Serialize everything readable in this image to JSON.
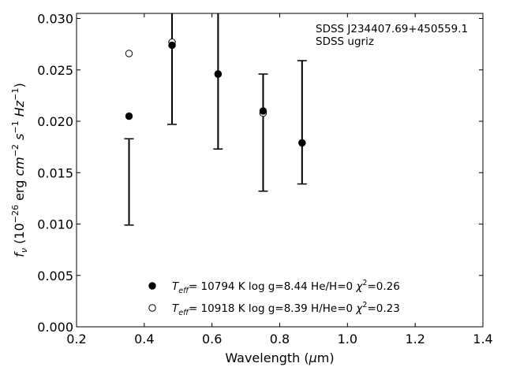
{
  "chart_data": {
    "type": "scatter",
    "annotation_lines": [
      "SDSS J234407.69+450559.1",
      "SDSS ugriz"
    ],
    "xlabel": "Wavelength (μm)",
    "ylabel": "f_ν (10^-26 erg cm^-2 s^-1 Hz^-1)",
    "xlim": [
      0.2,
      1.4
    ],
    "ylim": [
      0.0,
      0.0305
    ],
    "xticks": [
      0.2,
      0.4,
      0.6,
      0.8,
      1.0,
      1.2,
      1.4
    ],
    "xtick_labels": [
      "0.2",
      "0.4",
      "0.6",
      "0.8",
      "1.0",
      "1.2",
      "1.4"
    ],
    "yticks": [
      0.0,
      0.005,
      0.01,
      0.015,
      0.02,
      0.025,
      0.03
    ],
    "ytick_labels": [
      "0.000",
      "0.005",
      "0.010",
      "0.015",
      "0.020",
      "0.025",
      "0.030"
    ],
    "grid": false,
    "legend_placement": "lower-center",
    "observed": {
      "x": [
        0.355,
        0.482,
        0.618,
        0.751,
        0.866
      ],
      "y": [
        0.0141,
        0.0257,
        0.0271,
        0.0189,
        0.0199
      ],
      "yerr": [
        0.0042,
        0.006,
        0.0098,
        0.0057,
        0.006
      ]
    },
    "series": [
      {
        "name": "T_eff= 10794 K  log g=8.44  He/H=0  χ²=0.26",
        "marker": "filled-circle",
        "color": "#000000",
        "x": [
          0.355,
          0.482,
          0.618,
          0.751,
          0.866
        ],
        "y": [
          0.0205,
          0.0274,
          0.0246,
          0.021,
          0.0179
        ]
      },
      {
        "name": "T_eff= 10918 K  log g=8.39  H/He=0  χ²=0.23",
        "marker": "open-circle",
        "color": "#000000",
        "x": [
          0.355,
          0.482,
          0.618,
          0.751,
          0.866
        ],
        "y": [
          0.0266,
          0.0277,
          0.0246,
          0.0208,
          0.0179
        ]
      }
    ]
  }
}
